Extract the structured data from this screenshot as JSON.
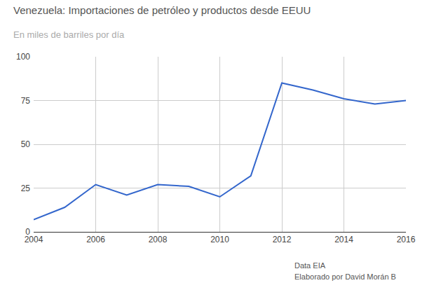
{
  "chart_data": {
    "type": "line",
    "title": "Venezuela: Importaciones de petróleo y productos desde EEUU",
    "subtitle": "En miles de barriles por día",
    "annotations": [
      "Data EIA",
      "Elaborado por David Morán B"
    ],
    "x": [
      2004,
      2005,
      2006,
      2007,
      2008,
      2009,
      2010,
      2011,
      2012,
      2013,
      2014,
      2015,
      2016
    ],
    "values": [
      7,
      14,
      27,
      21,
      27,
      26,
      20,
      32,
      85,
      81,
      76,
      73,
      75
    ],
    "color": "#3366cc",
    "xlim": [
      2004,
      2016
    ],
    "xticks": [
      2004,
      2006,
      2008,
      2010,
      2012,
      2014,
      2016
    ],
    "ylim": [
      0,
      100
    ],
    "yticks": [
      0,
      25,
      50,
      75,
      100
    ],
    "grid": true
  }
}
